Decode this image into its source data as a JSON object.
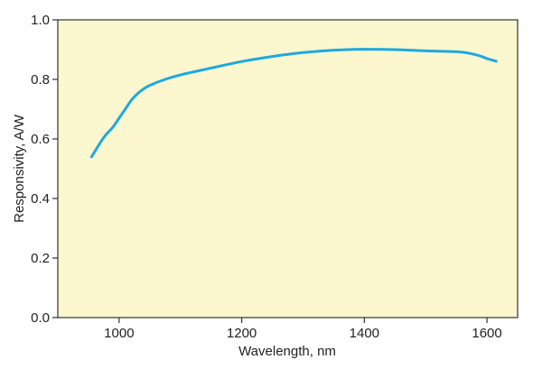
{
  "chart_data": {
    "type": "line",
    "title": "",
    "xlabel": "Wavelength, nm",
    "ylabel": "Responsivity, A/W",
    "xlim": [
      900,
      1650
    ],
    "ylim": [
      0,
      1.0
    ],
    "x_ticks": [
      1000,
      1200,
      1400,
      1600
    ],
    "x_tick_labels": [
      "1000",
      "1200",
      "1400",
      "1600"
    ],
    "y_ticks": [
      0,
      0.2,
      0.4,
      0.6,
      0.8,
      1.0
    ],
    "y_tick_labels": [
      "0.0",
      "0.2",
      "0.4",
      "0.6",
      "0.8",
      "1.0"
    ],
    "grid": false,
    "legend": "none",
    "series": [
      {
        "x": [
          955,
          975,
          990,
          1000,
          1010,
          1020,
          1030,
          1040,
          1050,
          1075,
          1100,
          1150,
          1200,
          1250,
          1300,
          1350,
          1400,
          1450,
          1500,
          1550,
          1570,
          1590,
          1600,
          1615
        ],
        "y": [
          0.54,
          0.605,
          0.64,
          0.67,
          0.7,
          0.73,
          0.752,
          0.768,
          0.78,
          0.8,
          0.815,
          0.838,
          0.86,
          0.877,
          0.89,
          0.898,
          0.901,
          0.9,
          0.896,
          0.893,
          0.888,
          0.878,
          0.87,
          0.861
        ]
      }
    ],
    "colors": {
      "line": "#1ea9df",
      "plot_background": "#fcf7cf",
      "axes": "#333333"
    }
  }
}
